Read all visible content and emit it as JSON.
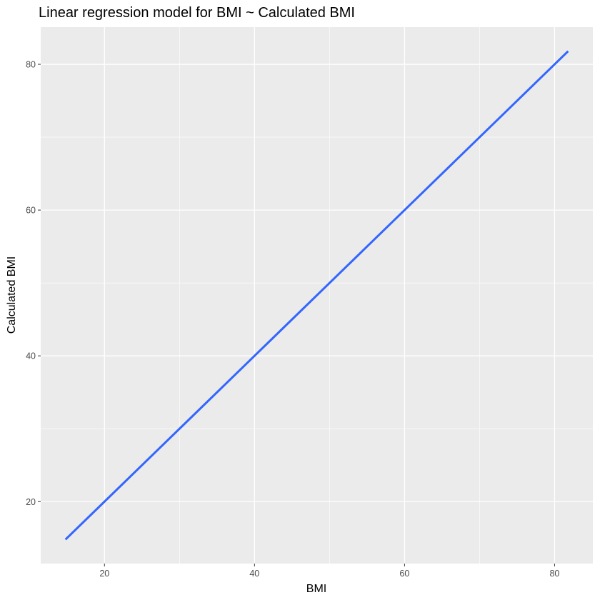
{
  "chart_data": {
    "type": "line",
    "title": "Linear regression model for BMI ~ Calculated BMI",
    "xlabel": "BMI",
    "ylabel": "Calculated BMI",
    "xlim": [
      11.5,
      85.1
    ],
    "ylim": [
      11.5,
      85.1
    ],
    "x_ticks": [
      20,
      40,
      60,
      80
    ],
    "y_ticks": [
      20,
      40,
      60,
      80
    ],
    "x_minor": [
      30,
      50,
      70
    ],
    "y_minor": [
      30,
      50,
      70
    ],
    "grid": true,
    "series": [
      {
        "x": [
          14.8,
          81.8
        ],
        "y": [
          14.8,
          81.8
        ],
        "color": "#3366FF"
      }
    ],
    "colors": {
      "panel": "#EBEBEB",
      "grid": "#FFFFFF",
      "tick": "#333333",
      "line": "#3366FF"
    }
  }
}
